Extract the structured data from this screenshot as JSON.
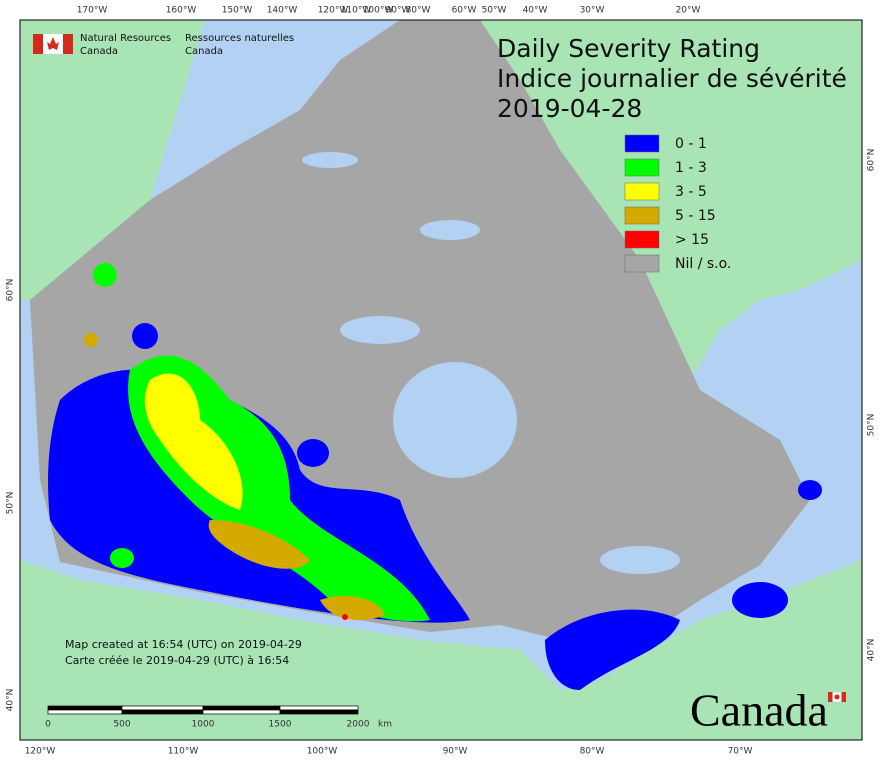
{
  "header": {
    "org_en": "Natural Resources",
    "org_en_2": "Canada",
    "org_fr": "Ressources naturelles",
    "org_fr_2": "Canada"
  },
  "title": [
    "Daily Severity Rating",
    "Indice journalier de sévérité",
    "2019-04-28"
  ],
  "legend": [
    {
      "label": "0 - 1",
      "color": "#0000ff"
    },
    {
      "label": "1 - 3",
      "color": "#00ff00"
    },
    {
      "label": "3 - 5",
      "color": "#ffff00"
    },
    {
      "label": "5 - 15",
      "color": "#d4aa00"
    },
    {
      "label": "> 15",
      "color": "#ff0000"
    },
    {
      "label": "Nil / s.o.",
      "color": "#a6a6a6"
    }
  ],
  "graticule": {
    "top": [
      "170°W",
      "160°W",
      "150°W",
      "140°W",
      "120°W",
      "110°W",
      "100°W",
      "90°W",
      "80°W",
      "60°W",
      "50°W",
      "40°W",
      "30°W",
      "20°W"
    ],
    "bottom": [
      "120°W",
      "110°W",
      "100°W",
      "90°W",
      "80°W",
      "70°W"
    ],
    "left": [
      "60°N",
      "50°N",
      "40°N"
    ],
    "right": [
      "60°N",
      "50°N",
      "40°N"
    ]
  },
  "credits": [
    "Map created at 16:54 (UTC) on 2019-04-29",
    "Carte créée le 2019-04-29 (UTC) à 16:54"
  ],
  "scale_bar": {
    "labels": [
      "0",
      "500",
      "1000",
      "1500",
      "2000"
    ],
    "unit": "km"
  },
  "wordmark": "Canada"
}
